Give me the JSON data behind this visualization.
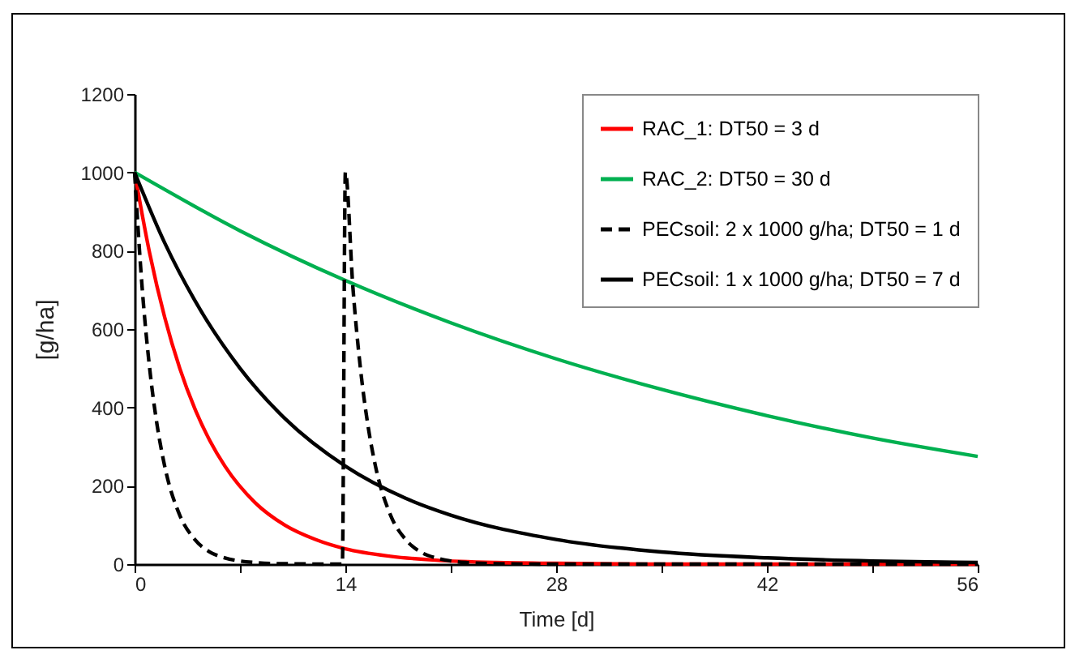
{
  "chart_data": {
    "type": "line",
    "xlabel": "Time [d]",
    "ylabel": "[g/ha]",
    "xlim": [
      0,
      56
    ],
    "ylim": [
      0,
      1200
    ],
    "xticks": [
      0,
      {
        "value": 7,
        "label": null
      },
      14,
      {
        "value": 21,
        "label": null
      },
      28,
      {
        "value": 35,
        "label": null
      },
      42,
      {
        "value": 49,
        "label": null
      },
      56
    ],
    "yticks": [
      0,
      200,
      400,
      600,
      800,
      1000,
      1200
    ],
    "grid": false,
    "legend": "top right",
    "marker": "none",
    "series": [
      {
        "name": "RAC_1: DT50 = 3 d",
        "color": "#ff0000",
        "line_style": "solid",
        "x": [
          0,
          1,
          2,
          3,
          4,
          5,
          6,
          8,
          10,
          12,
          14,
          17,
          20,
          24,
          28,
          35,
          56
        ],
        "values": [
          1000,
          794,
          630,
          500,
          397,
          315,
          250,
          157,
          99,
          63,
          39,
          20,
          10,
          4,
          2,
          0,
          0
        ]
      },
      {
        "name": "RAC_2: DT50 = 30 d",
        "color": "#00b050",
        "line_style": "solid",
        "x": [
          0,
          7,
          14,
          21,
          28,
          35,
          42,
          49,
          56
        ],
        "values": [
          1000,
          851,
          724,
          616,
          524,
          446,
          379,
          322,
          275
        ]
      },
      {
        "name": "PECsoil: 2 x 1000 g/ha; DT50 = 1 d",
        "color": "#000000",
        "line_style": "dashed",
        "x": [
          0,
          0.5,
          1,
          1.5,
          2,
          3,
          4,
          5,
          6,
          7,
          8,
          10,
          13.8,
          14,
          14.5,
          15,
          15.5,
          16,
          17,
          18,
          19,
          20,
          21,
          22,
          24,
          28,
          56
        ],
        "values": [
          1000,
          707,
          500,
          354,
          250,
          125,
          63,
          31,
          16,
          8,
          4,
          1,
          0,
          1000,
          707,
          500,
          354,
          250,
          125,
          63,
          31,
          16,
          8,
          4,
          1,
          0,
          0
        ]
      },
      {
        "name": "PECsoil: 1 x 1000 g/ha; DT50 = 7 d",
        "color": "#000000",
        "line_style": "solid",
        "x": [
          0,
          2,
          4,
          7,
          10,
          14,
          18,
          21,
          28,
          35,
          42,
          49,
          56
        ],
        "values": [
          1000,
          820,
          673,
          500,
          371,
          250,
          168,
          125,
          63,
          31,
          16,
          8,
          4
        ]
      }
    ]
  }
}
